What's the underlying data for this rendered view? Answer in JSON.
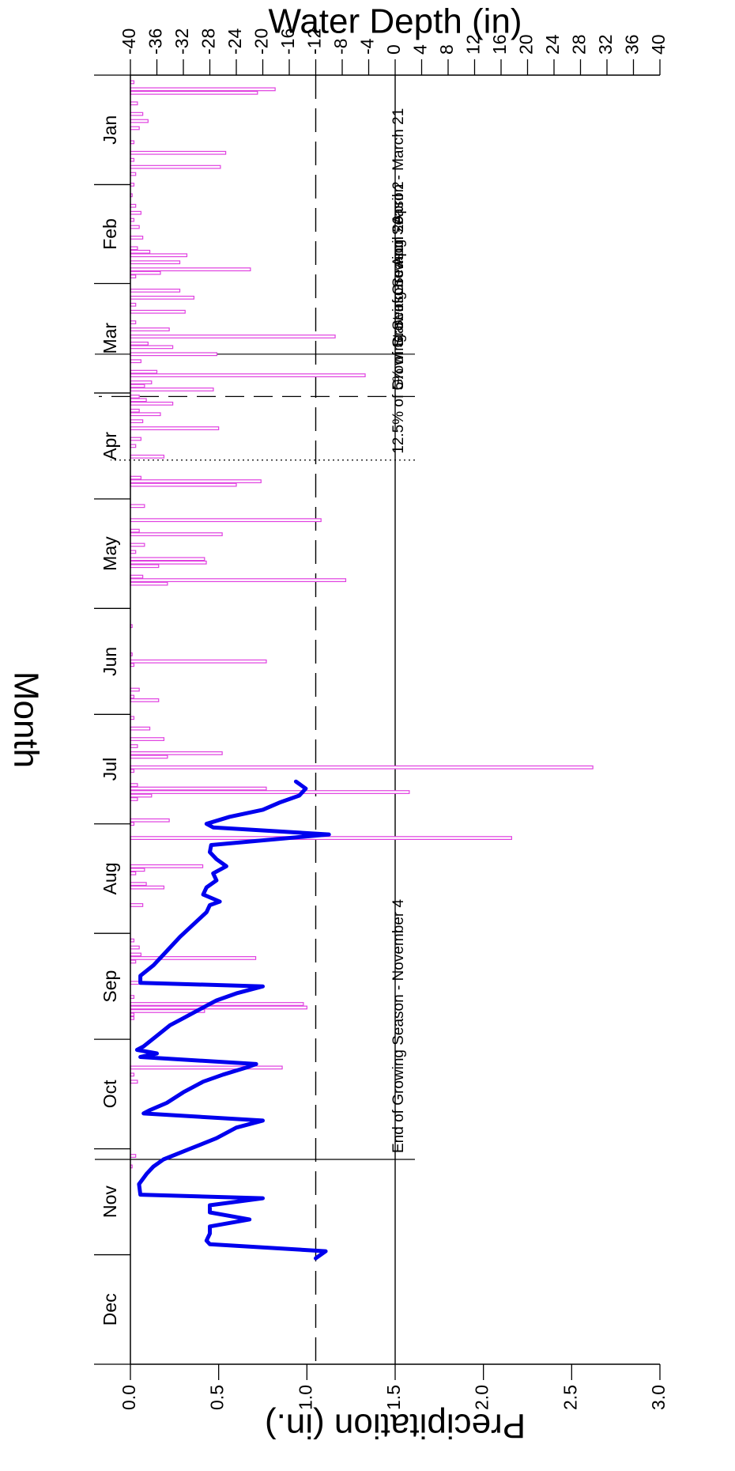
{
  "chart_data": {
    "type": "bar",
    "rotation": "image rotated 90 degrees clockwise; months run top (Dec) to bottom (Jan)",
    "xlabel": "Month",
    "ylabel_left": "Water Depth (in)",
    "ylabel_right": "Precipitation (in.)",
    "x_categories": [
      "Jan",
      "Feb",
      "Mar",
      "Apr",
      "May",
      "Jun",
      "Jul",
      "Aug",
      "Sep",
      "Oct",
      "Nov",
      "Dec"
    ],
    "x_range_days": [
      1,
      366
    ],
    "depth_axis": {
      "min": -40,
      "max": 40,
      "ticks": [
        40,
        36,
        32,
        28,
        24,
        20,
        16,
        12,
        8,
        4,
        0,
        -4,
        -8,
        -12,
        -16,
        -20,
        -24,
        -28,
        -32,
        -36,
        -40
      ]
    },
    "precip_axis": {
      "min": 0,
      "max": 3.0,
      "ticks": [
        "0.0",
        "0.5",
        "1.0",
        "1.5",
        "2.0",
        "2.5",
        "3.0"
      ]
    },
    "reference_lines": [
      {
        "name": "zero-depth-line",
        "depth": 0,
        "style": "solid"
      },
      {
        "name": "minus-twelve-line",
        "depth": -12,
        "style": "dashed"
      }
    ],
    "annotations": [
      {
        "label": "Start of Growing Season - March 21",
        "day": 80,
        "style": "solid"
      },
      {
        "label": "5% of Growing Season - April 2",
        "day": 92,
        "style": "dashed"
      },
      {
        "label": "12.5% of Growing Season - April 20",
        "day": 110,
        "style": "dotted"
      },
      {
        "label": "End of Growing Season - November 4",
        "day": 308,
        "style": "solid"
      }
    ],
    "precip_series": {
      "name": "Precipitation",
      "color": "#e040e0",
      "points": [
        {
          "day": 3,
          "value": 0.02
        },
        {
          "day": 5,
          "value": 0.82
        },
        {
          "day": 6,
          "value": 0.72
        },
        {
          "day": 9,
          "value": 0.04
        },
        {
          "day": 12,
          "value": 0.07
        },
        {
          "day": 14,
          "value": 0.1
        },
        {
          "day": 16,
          "value": 0.05
        },
        {
          "day": 20,
          "value": 0.02
        },
        {
          "day": 23,
          "value": 0.54
        },
        {
          "day": 25,
          "value": 0.02
        },
        {
          "day": 27,
          "value": 0.51
        },
        {
          "day": 29,
          "value": 0.03
        },
        {
          "day": 32,
          "value": 0.02
        },
        {
          "day": 35,
          "value": 0.01
        },
        {
          "day": 38,
          "value": 0.03
        },
        {
          "day": 40,
          "value": 0.06
        },
        {
          "day": 42,
          "value": 0.02
        },
        {
          "day": 44,
          "value": 0.05
        },
        {
          "day": 47,
          "value": 0.07
        },
        {
          "day": 50,
          "value": 0.04
        },
        {
          "day": 51,
          "value": 0.11
        },
        {
          "day": 52,
          "value": 0.32
        },
        {
          "day": 54,
          "value": 0.28
        },
        {
          "day": 56,
          "value": 0.68
        },
        {
          "day": 57,
          "value": 0.17
        },
        {
          "day": 58,
          "value": 0.03
        },
        {
          "day": 62,
          "value": 0.28
        },
        {
          "day": 64,
          "value": 0.36
        },
        {
          "day": 66,
          "value": 0.03
        },
        {
          "day": 68,
          "value": 0.31
        },
        {
          "day": 71,
          "value": 0.03
        },
        {
          "day": 73,
          "value": 0.22
        },
        {
          "day": 75,
          "value": 1.16
        },
        {
          "day": 77,
          "value": 0.1
        },
        {
          "day": 78,
          "value": 0.24
        },
        {
          "day": 80,
          "value": 0.49
        },
        {
          "day": 82,
          "value": 0.06
        },
        {
          "day": 85,
          "value": 0.15
        },
        {
          "day": 86,
          "value": 1.33
        },
        {
          "day": 88,
          "value": 0.12
        },
        {
          "day": 89,
          "value": 0.08
        },
        {
          "day": 90,
          "value": 0.47
        },
        {
          "day": 92,
          "value": 0.05
        },
        {
          "day": 93,
          "value": 0.09
        },
        {
          "day": 94,
          "value": 0.24
        },
        {
          "day": 96,
          "value": 0.05
        },
        {
          "day": 97,
          "value": 0.17
        },
        {
          "day": 99,
          "value": 0.07
        },
        {
          "day": 101,
          "value": 0.5
        },
        {
          "day": 104,
          "value": 0.06
        },
        {
          "day": 106,
          "value": 0.03
        },
        {
          "day": 109,
          "value": 0.19
        },
        {
          "day": 115,
          "value": 0.06
        },
        {
          "day": 116,
          "value": 0.74
        },
        {
          "day": 117,
          "value": 0.6
        },
        {
          "day": 123,
          "value": 0.08
        },
        {
          "day": 127,
          "value": 1.08
        },
        {
          "day": 130,
          "value": 0.05
        },
        {
          "day": 131,
          "value": 0.52
        },
        {
          "day": 134,
          "value": 0.08
        },
        {
          "day": 136,
          "value": 0.03
        },
        {
          "day": 138,
          "value": 0.42
        },
        {
          "day": 139,
          "value": 0.43
        },
        {
          "day": 140,
          "value": 0.16
        },
        {
          "day": 143,
          "value": 0.07
        },
        {
          "day": 144,
          "value": 1.22
        },
        {
          "day": 145,
          "value": 0.21
        },
        {
          "day": 157,
          "value": 0.01
        },
        {
          "day": 165,
          "value": 0.01
        },
        {
          "day": 167,
          "value": 0.77
        },
        {
          "day": 168,
          "value": 0.02
        },
        {
          "day": 175,
          "value": 0.05
        },
        {
          "day": 177,
          "value": 0.02
        },
        {
          "day": 178,
          "value": 0.16
        },
        {
          "day": 183,
          "value": 0.02
        },
        {
          "day": 186,
          "value": 0.11
        },
        {
          "day": 189,
          "value": 0.19
        },
        {
          "day": 191,
          "value": 0.04
        },
        {
          "day": 193,
          "value": 0.52
        },
        {
          "day": 194,
          "value": 0.21
        },
        {
          "day": 197,
          "value": 2.62
        },
        {
          "day": 198,
          "value": 0.02
        },
        {
          "day": 202,
          "value": 0.04
        },
        {
          "day": 203,
          "value": 0.77
        },
        {
          "day": 204,
          "value": 1.58
        },
        {
          "day": 205,
          "value": 0.12
        },
        {
          "day": 206,
          "value": 0.04
        },
        {
          "day": 212,
          "value": 0.22
        },
        {
          "day": 213,
          "value": 0.02
        },
        {
          "day": 217,
          "value": 2.16
        },
        {
          "day": 225,
          "value": 0.41
        },
        {
          "day": 226,
          "value": 0.08
        },
        {
          "day": 227,
          "value": 0.03
        },
        {
          "day": 230,
          "value": 0.09
        },
        {
          "day": 231,
          "value": 0.19
        },
        {
          "day": 236,
          "value": 0.07
        },
        {
          "day": 246,
          "value": 0.02
        },
        {
          "day": 248,
          "value": 0.05
        },
        {
          "day": 250,
          "value": 0.06
        },
        {
          "day": 251,
          "value": 0.71
        },
        {
          "day": 252,
          "value": 0.03
        },
        {
          "day": 258,
          "value": 0.06
        },
        {
          "day": 262,
          "value": 0.02
        },
        {
          "day": 264,
          "value": 0.98
        },
        {
          "day": 265,
          "value": 1.0
        },
        {
          "day": 266,
          "value": 0.42
        },
        {
          "day": 267,
          "value": 0.02
        },
        {
          "day": 268,
          "value": 0.02
        },
        {
          "day": 282,
          "value": 0.86
        },
        {
          "day": 284,
          "value": 0.02
        },
        {
          "day": 286,
          "value": 0.04
        },
        {
          "day": 307,
          "value": 0.03
        },
        {
          "day": 310,
          "value": 0.01
        }
      ]
    },
    "depth_series": {
      "name": "Water Depth",
      "color": "#0000ee",
      "points": [
        {
          "day": 201,
          "value": -15.0
        },
        {
          "day": 203,
          "value": -13.5
        },
        {
          "day": 205,
          "value": -14.5
        },
        {
          "day": 207,
          "value": -17.5
        },
        {
          "day": 209,
          "value": -20.0
        },
        {
          "day": 211,
          "value": -25.0
        },
        {
          "day": 213,
          "value": -28.5
        },
        {
          "day": 214,
          "value": -27.5
        },
        {
          "day": 216,
          "value": -10.0
        },
        {
          "day": 219,
          "value": -27.8
        },
        {
          "day": 221,
          "value": -28.0
        },
        {
          "day": 223,
          "value": -27.0
        },
        {
          "day": 225,
          "value": -25.5
        },
        {
          "day": 227,
          "value": -27.5
        },
        {
          "day": 229,
          "value": -27.0
        },
        {
          "day": 231,
          "value": -28.5
        },
        {
          "day": 233,
          "value": -29.0
        },
        {
          "day": 235,
          "value": -26.5
        },
        {
          "day": 236,
          "value": -28.0
        },
        {
          "day": 238,
          "value": -28.5
        },
        {
          "day": 245,
          "value": -32.5
        },
        {
          "day": 250,
          "value": -35.0
        },
        {
          "day": 253,
          "value": -36.5
        },
        {
          "day": 256,
          "value": -38.5
        },
        {
          "day": 258,
          "value": -38.5
        },
        {
          "day": 259,
          "value": -20.0
        },
        {
          "day": 261,
          "value": -24.0
        },
        {
          "day": 263,
          "value": -27.0
        },
        {
          "day": 266,
          "value": -30.0
        },
        {
          "day": 268,
          "value": -32.0
        },
        {
          "day": 270,
          "value": -34.0
        },
        {
          "day": 273,
          "value": -36.0
        },
        {
          "day": 276,
          "value": -38.0
        },
        {
          "day": 277,
          "value": -39.0
        },
        {
          "day": 278,
          "value": -36.0
        },
        {
          "day": 279,
          "value": -38.5
        },
        {
          "day": 281,
          "value": -21.0
        },
        {
          "day": 282,
          "value": -22.5
        },
        {
          "day": 284,
          "value": -26.0
        },
        {
          "day": 286,
          "value": -29.0
        },
        {
          "day": 289,
          "value": -32.0
        },
        {
          "day": 292,
          "value": -34.5
        },
        {
          "day": 294,
          "value": -37.0
        },
        {
          "day": 295,
          "value": -38.0
        },
        {
          "day": 297,
          "value": -20.0
        },
        {
          "day": 299,
          "value": -24.0
        },
        {
          "day": 302,
          "value": -27.0
        },
        {
          "day": 305,
          "value": -31.0
        },
        {
          "day": 308,
          "value": -35.0
        },
        {
          "day": 310,
          "value": -36.5
        },
        {
          "day": 312,
          "value": -37.5
        },
        {
          "day": 315,
          "value": -38.7
        },
        {
          "day": 318,
          "value": -38.5
        },
        {
          "day": 319,
          "value": -20.0
        },
        {
          "day": 321,
          "value": -28.0
        },
        {
          "day": 323,
          "value": -28.0
        },
        {
          "day": 325,
          "value": -22.0
        },
        {
          "day": 327,
          "value": -28.0
        },
        {
          "day": 329,
          "value": -28.0
        },
        {
          "day": 331,
          "value": -28.5
        },
        {
          "day": 332,
          "value": -28.0
        },
        {
          "day": 334,
          "value": -10.5
        },
        {
          "day": 336,
          "value": -12.0
        }
      ]
    }
  }
}
